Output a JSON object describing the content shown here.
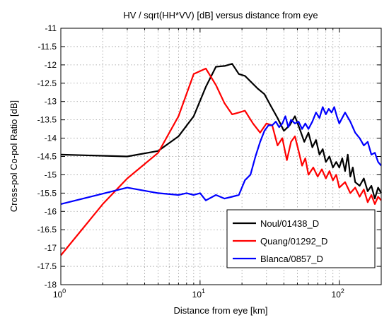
{
  "chart_data": {
    "type": "line",
    "title": "HV / sqrt(HH*VV) [dB] versus distance from eye",
    "xlabel": "Distance from eye [km]",
    "ylabel": "Cross-pol Co-pol Ratio [dB]",
    "xscale": "log",
    "xlim": [
      1,
      200
    ],
    "ylim": [
      -18,
      -11
    ],
    "grid": true,
    "legend_position": "bottom-right",
    "xticks": [
      {
        "value": 1,
        "base": "10",
        "exp": "0"
      },
      {
        "value": 10,
        "base": "10",
        "exp": "1"
      },
      {
        "value": 100,
        "base": "10",
        "exp": "2"
      }
    ],
    "yticks": [
      {
        "value": -11,
        "label": "-11"
      },
      {
        "value": -11.5,
        "label": "-11.5"
      },
      {
        "value": -12,
        "label": "-12"
      },
      {
        "value": -12.5,
        "label": "-12.5"
      },
      {
        "value": -13,
        "label": "-13"
      },
      {
        "value": -13.5,
        "label": "-13.5"
      },
      {
        "value": -14,
        "label": "-14"
      },
      {
        "value": -14.5,
        "label": "-14.5"
      },
      {
        "value": -15,
        "label": "-15"
      },
      {
        "value": -15.5,
        "label": "-15.5"
      },
      {
        "value": -16,
        "label": "-16"
      },
      {
        "value": -16.5,
        "label": "-16.5"
      },
      {
        "value": -17,
        "label": "-17"
      },
      {
        "value": -17.5,
        "label": "-17.5"
      },
      {
        "value": -18,
        "label": "-18"
      }
    ],
    "series": [
      {
        "name": "Noul/01438_D",
        "color": "#000000",
        "points": [
          [
            1,
            -14.45
          ],
          [
            3,
            -14.5
          ],
          [
            5,
            -14.35
          ],
          [
            7,
            -13.95
          ],
          [
            9,
            -13.4
          ],
          [
            11,
            -12.6
          ],
          [
            13,
            -12.05
          ],
          [
            15,
            -12.03
          ],
          [
            17,
            -11.97
          ],
          [
            19,
            -12.25
          ],
          [
            21,
            -12.3
          ],
          [
            23,
            -12.45
          ],
          [
            26,
            -12.65
          ],
          [
            29,
            -12.8
          ],
          [
            32,
            -13.1
          ],
          [
            36,
            -13.45
          ],
          [
            40,
            -13.8
          ],
          [
            44,
            -13.65
          ],
          [
            48,
            -13.4
          ],
          [
            52,
            -13.75
          ],
          [
            56,
            -14.1
          ],
          [
            60,
            -13.85
          ],
          [
            64,
            -14.25
          ],
          [
            68,
            -14.05
          ],
          [
            72,
            -14.45
          ],
          [
            76,
            -14.3
          ],
          [
            80,
            -14.65
          ],
          [
            85,
            -14.5
          ],
          [
            90,
            -14.8
          ],
          [
            95,
            -14.65
          ],
          [
            100,
            -14.8
          ],
          [
            105,
            -14.55
          ],
          [
            110,
            -14.9
          ],
          [
            115,
            -14.45
          ],
          [
            120,
            -15.05
          ],
          [
            125,
            -14.8
          ],
          [
            130,
            -15.2
          ],
          [
            140,
            -15.3
          ],
          [
            150,
            -15.1
          ],
          [
            160,
            -15.45
          ],
          [
            170,
            -15.3
          ],
          [
            180,
            -15.65
          ],
          [
            190,
            -15.35
          ],
          [
            200,
            -15.5
          ]
        ]
      },
      {
        "name": "Quang/01292_D",
        "color": "#ff0000",
        "points": [
          [
            1,
            -17.2
          ],
          [
            2,
            -15.8
          ],
          [
            3,
            -15.1
          ],
          [
            5,
            -14.4
          ],
          [
            7,
            -13.4
          ],
          [
            9,
            -12.25
          ],
          [
            11,
            -12.1
          ],
          [
            13,
            -12.55
          ],
          [
            15,
            -13.05
          ],
          [
            17,
            -13.35
          ],
          [
            19,
            -13.3
          ],
          [
            21,
            -13.25
          ],
          [
            24,
            -13.6
          ],
          [
            27,
            -13.85
          ],
          [
            30,
            -13.6
          ],
          [
            33,
            -13.65
          ],
          [
            36,
            -14.2
          ],
          [
            39,
            -14.0
          ],
          [
            42,
            -14.6
          ],
          [
            45,
            -14.1
          ],
          [
            48,
            -13.95
          ],
          [
            51,
            -14.35
          ],
          [
            54,
            -14.75
          ],
          [
            57,
            -14.55
          ],
          [
            60,
            -15.0
          ],
          [
            65,
            -14.8
          ],
          [
            70,
            -15.05
          ],
          [
            75,
            -14.85
          ],
          [
            80,
            -15.1
          ],
          [
            85,
            -14.9
          ],
          [
            90,
            -15.15
          ],
          [
            95,
            -15.0
          ],
          [
            100,
            -15.35
          ],
          [
            110,
            -15.2
          ],
          [
            120,
            -15.5
          ],
          [
            130,
            -15.35
          ],
          [
            140,
            -15.6
          ],
          [
            150,
            -15.4
          ],
          [
            160,
            -15.75
          ],
          [
            170,
            -15.55
          ],
          [
            180,
            -15.8
          ],
          [
            190,
            -15.6
          ],
          [
            200,
            -15.7
          ]
        ]
      },
      {
        "name": "Blanca/0857_D",
        "color": "#0000ff",
        "points": [
          [
            1,
            -15.8
          ],
          [
            3,
            -15.35
          ],
          [
            5,
            -15.5
          ],
          [
            7,
            -15.55
          ],
          [
            8,
            -15.5
          ],
          [
            9,
            -15.55
          ],
          [
            10,
            -15.5
          ],
          [
            11,
            -15.7
          ],
          [
            13,
            -15.55
          ],
          [
            15,
            -15.65
          ],
          [
            17,
            -15.6
          ],
          [
            19,
            -15.55
          ],
          [
            21,
            -15.15
          ],
          [
            23,
            -15.0
          ],
          [
            25,
            -14.5
          ],
          [
            27,
            -14.1
          ],
          [
            29,
            -13.8
          ],
          [
            31,
            -13.65
          ],
          [
            33,
            -13.65
          ],
          [
            35,
            -13.55
          ],
          [
            37,
            -13.7
          ],
          [
            39,
            -13.6
          ],
          [
            41,
            -13.4
          ],
          [
            43,
            -13.7
          ],
          [
            45,
            -13.5
          ],
          [
            48,
            -13.6
          ],
          [
            51,
            -13.55
          ],
          [
            54,
            -13.75
          ],
          [
            57,
            -13.6
          ],
          [
            60,
            -13.75
          ],
          [
            64,
            -13.55
          ],
          [
            68,
            -13.3
          ],
          [
            72,
            -13.45
          ],
          [
            76,
            -13.15
          ],
          [
            80,
            -13.35
          ],
          [
            84,
            -13.2
          ],
          [
            88,
            -13.3
          ],
          [
            92,
            -13.15
          ],
          [
            96,
            -13.4
          ],
          [
            100,
            -13.6
          ],
          [
            110,
            -13.3
          ],
          [
            120,
            -13.55
          ],
          [
            130,
            -13.85
          ],
          [
            140,
            -14.0
          ],
          [
            150,
            -14.2
          ],
          [
            160,
            -14.1
          ],
          [
            170,
            -14.45
          ],
          [
            180,
            -14.4
          ],
          [
            190,
            -14.65
          ],
          [
            200,
            -14.75
          ]
        ]
      }
    ]
  }
}
